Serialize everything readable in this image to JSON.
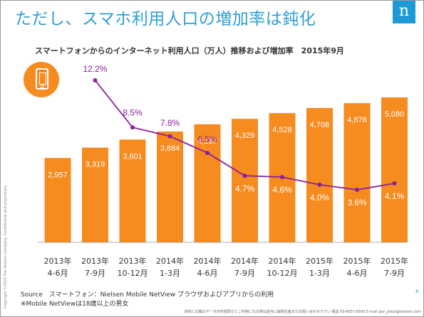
{
  "title": "ただし、スマホ利用人口の増加率は鈍化",
  "logo_text": "n",
  "colors": {
    "bar": "#f68b1f",
    "line": "#8b1f9b",
    "title": "#2e9fd6"
  },
  "icon": "smartphone-icon",
  "chart_data": {
    "type": "bar",
    "title": "スマートフォンからのインターネット利用人口（万人）推移および増加率　2015年9月",
    "categories": [
      [
        "2013年",
        "4-6月"
      ],
      [
        "2013年",
        "7-9月"
      ],
      [
        "2013年",
        "10-12月"
      ],
      [
        "2014年",
        "1-3月"
      ],
      [
        "2014年",
        "4-6月"
      ],
      [
        "2014年",
        "7-9月"
      ],
      [
        "2014年",
        "10-12月"
      ],
      [
        "2015年",
        "1-3月"
      ],
      [
        "2015年",
        "4-6月"
      ],
      [
        "2015年",
        "7-9月"
      ]
    ],
    "series": [
      {
        "type": "bar",
        "values": [
          2957,
          3319,
          3601,
          3884,
          4137,
          4329,
          4528,
          4708,
          4878,
          5080
        ],
        "labels": [
          "2,957",
          "3,319",
          "3,601",
          "3,884",
          "4,137",
          "4,329",
          "4,528",
          "4,708",
          "4,878",
          "5,080"
        ]
      },
      {
        "type": "line",
        "unit": "%",
        "values": [
          null,
          12.2,
          8.5,
          7.8,
          6.5,
          4.7,
          4.6,
          4.0,
          3.6,
          4.1
        ],
        "labels": [
          "",
          "12.2%",
          "8.5%",
          "7.8%",
          "6.5%",
          "4.7%",
          "4.6%",
          "4.0%",
          "3.6%",
          "4.1%"
        ]
      }
    ],
    "grid": false,
    "legend": "none"
  },
  "source": "Source　スマートフォン：Nielsen Mobile NetView ブラウザおよびアプリからの利用",
  "note": "※Mobile NetViewは18歳以上の男女",
  "page_number": "8",
  "footer": "資料に記載のデータ外形部局引とご利用になる際は該当に解題生産またお問い合わせ下さい 電話 03-6837-6500 E-mail jpw_press@nielsen.com",
  "copyright": "Copyright ©2015 The Nielsen Company. Confidential and proprietary."
}
